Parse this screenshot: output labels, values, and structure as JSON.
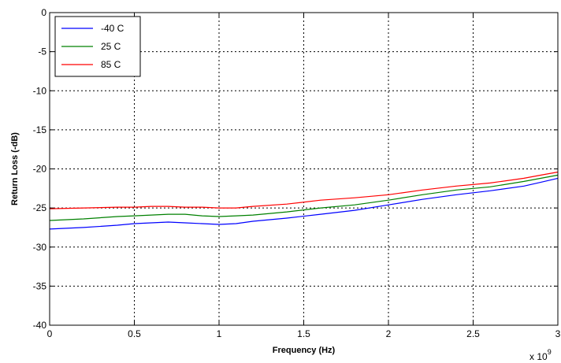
{
  "chart_data": {
    "type": "line",
    "title": "",
    "xlabel": "Frequency (Hz)",
    "ylabel": "Return Loss (-dB)",
    "x_exponent": {
      "base": "x 10",
      "power": "9"
    },
    "xlim": [
      0,
      3
    ],
    "ylim": [
      -40,
      0
    ],
    "x_ticks": [
      0,
      0.5,
      1,
      1.5,
      2,
      2.5,
      3
    ],
    "x_tick_labels": [
      "0",
      "0.5",
      "1",
      "1.5",
      "2",
      "2.5",
      "3"
    ],
    "y_ticks": [
      0,
      -5,
      -10,
      -15,
      -20,
      -25,
      -30,
      -35,
      -40
    ],
    "y_tick_labels": [
      "0",
      "-5",
      "-10",
      "-15",
      "-20",
      "-25",
      "-30",
      "-35",
      "-40"
    ],
    "grid": true,
    "legend_position": "top-left",
    "x": [
      0,
      0.2,
      0.4,
      0.5,
      0.6,
      0.7,
      0.8,
      0.9,
      1.0,
      1.1,
      1.2,
      1.4,
      1.6,
      1.8,
      2.0,
      2.2,
      2.4,
      2.6,
      2.8,
      2.9,
      3.0
    ],
    "series": [
      {
        "name": "-40 C",
        "color": "#0000ff",
        "values": [
          -27.7,
          -27.5,
          -27.2,
          -27.0,
          -26.9,
          -26.8,
          -26.9,
          -27.0,
          -27.1,
          -27.0,
          -26.7,
          -26.3,
          -25.8,
          -25.3,
          -24.6,
          -23.9,
          -23.3,
          -22.8,
          -22.2,
          -21.7,
          -21.2
        ]
      },
      {
        "name": "25 C",
        "color": "#008000",
        "values": [
          -26.6,
          -26.4,
          -26.1,
          -26.0,
          -25.9,
          -25.8,
          -25.8,
          -26.0,
          -26.1,
          -26.0,
          -25.9,
          -25.5,
          -25.0,
          -24.6,
          -24.0,
          -23.3,
          -22.7,
          -22.3,
          -21.6,
          -21.2,
          -20.8
        ]
      },
      {
        "name": "85 C",
        "color": "#ff0000",
        "values": [
          -25.1,
          -25.0,
          -24.9,
          -24.9,
          -24.8,
          -24.8,
          -24.9,
          -24.9,
          -25.0,
          -25.0,
          -24.8,
          -24.5,
          -24.0,
          -23.7,
          -23.3,
          -22.7,
          -22.2,
          -21.8,
          -21.2,
          -20.8,
          -20.4
        ]
      }
    ]
  }
}
